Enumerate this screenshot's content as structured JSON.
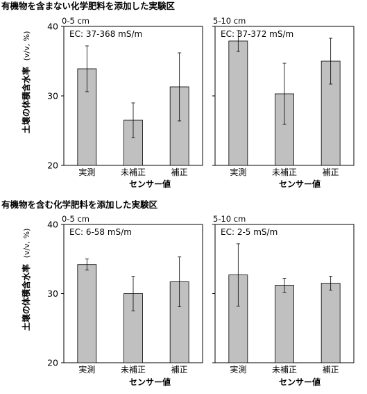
{
  "sections": [
    {
      "title": "有機物を含まない化学肥料を添加した実験区",
      "ylabel": "土壌の体積含水率",
      "yunit": "(v/v, %)",
      "xlabel": "センサー値"
    },
    {
      "title": "有機物を含む化学肥料を添加した実験区",
      "ylabel": "土壌の体積含水率",
      "yunit": "(v/v, %)",
      "xlabel": "センサー値"
    }
  ],
  "chart_data": [
    {
      "type": "bar",
      "title": "0-5 cm",
      "annotation": "EC: 37-368 mS/m",
      "categories": [
        "実測",
        "未補正",
        "補正"
      ],
      "values": [
        33.9,
        26.5,
        31.3
      ],
      "errors": [
        3.3,
        2.5,
        4.9
      ],
      "ylim": [
        20,
        40
      ],
      "yticks": [
        20,
        30,
        40
      ],
      "grid": false,
      "bar_color": "#c0c0c0"
    },
    {
      "type": "bar",
      "title": "5-10 cm",
      "annotation": "EC: 37-372 mS/m",
      "categories": [
        "実測",
        "未補正",
        "補正"
      ],
      "values": [
        37.9,
        30.3,
        35.0
      ],
      "errors": [
        1.5,
        4.4,
        3.3
      ],
      "ylim": [
        20,
        40
      ],
      "yticks": [
        20,
        30,
        40
      ],
      "grid": false,
      "bar_color": "#c0c0c0"
    },
    {
      "type": "bar",
      "title": "0-5 cm",
      "annotation": "EC: 6-58 mS/m",
      "categories": [
        "実測",
        "未補正",
        "補正"
      ],
      "values": [
        34.2,
        30.0,
        31.7
      ],
      "errors": [
        0.8,
        2.5,
        3.6
      ],
      "ylim": [
        20,
        40
      ],
      "yticks": [
        20,
        30,
        40
      ],
      "grid": false,
      "bar_color": "#c0c0c0"
    },
    {
      "type": "bar",
      "title": "5-10 cm",
      "annotation": "EC: 2-5 mS/m",
      "categories": [
        "実測",
        "未補正",
        "補正"
      ],
      "values": [
        32.7,
        31.2,
        31.5
      ],
      "errors": [
        4.5,
        1.0,
        1.0
      ],
      "ylim": [
        20,
        40
      ],
      "yticks": [
        20,
        30,
        40
      ],
      "grid": false,
      "bar_color": "#c0c0c0"
    }
  ]
}
